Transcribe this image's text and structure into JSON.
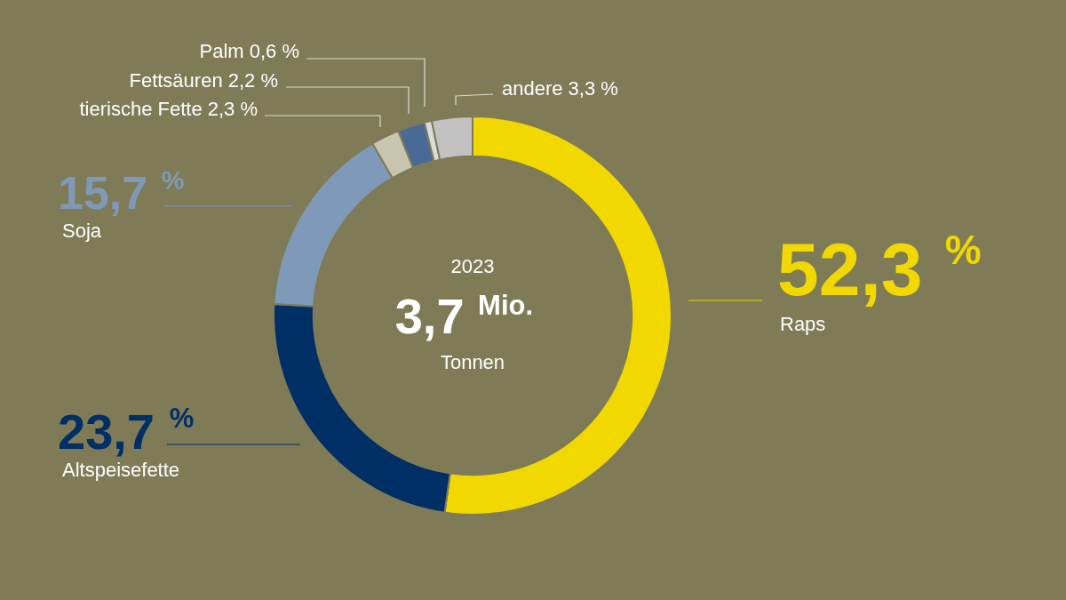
{
  "chart_data": {
    "type": "donut",
    "categories": [
      "Raps",
      "Altspeisefette",
      "Soja",
      "tierische Fette",
      "Fettsäuren",
      "Palm",
      "andere"
    ],
    "values": [
      52.3,
      23.7,
      15.7,
      2.3,
      2.2,
      0.6,
      3.3
    ],
    "value_labels": [
      "52,3 %",
      "23,7 %",
      "15,7 %",
      "2,3 %",
      "2,2 %",
      "0,6 %",
      "3,3 %"
    ],
    "colors": [
      "#f0d800",
      "#002f66",
      "#7f9ab8",
      "#c8c6b0",
      "#4a6a96",
      "#dcdcdc",
      "#c2c2c2"
    ],
    "annotations": [
      "2023",
      "3,7 $^{Mio.}$",
      "Tonnen"
    ],
    "legend": false
  }
}
